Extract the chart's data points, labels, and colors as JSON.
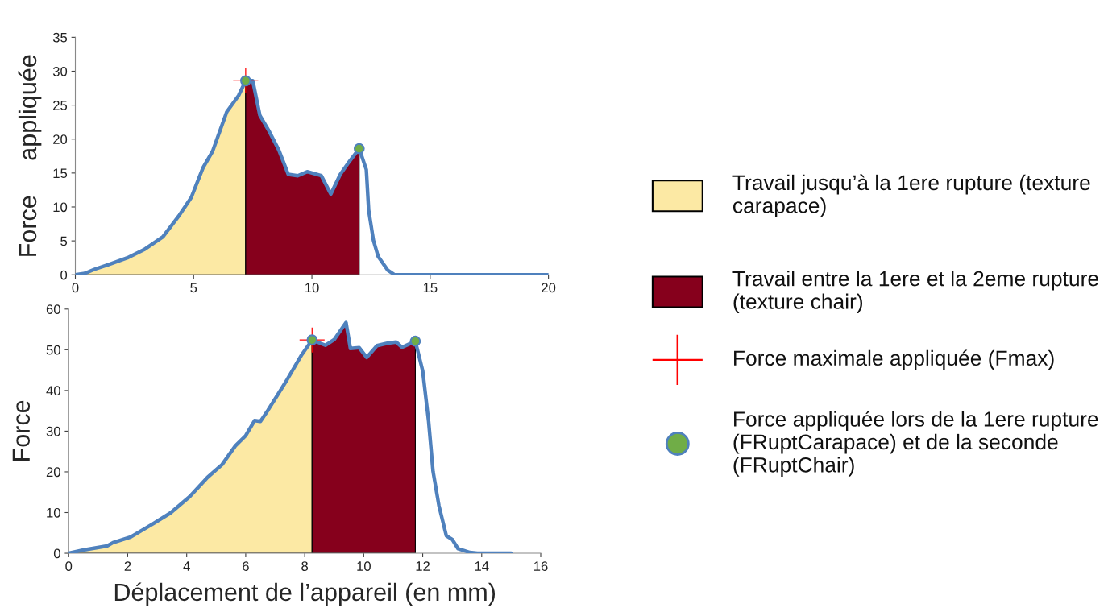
{
  "chart_data": [
    {
      "type": "line",
      "ylabel": "Force     appliquée",
      "xlim": [
        0,
        20
      ],
      "xticks": [
        0,
        5,
        10,
        15,
        20
      ],
      "ylim": [
        0,
        35
      ],
      "yticks": [
        0,
        5,
        10,
        15,
        20,
        25,
        30,
        35
      ],
      "grid": false,
      "legend": "right",
      "series": [
        {
          "color": "#4f81bd",
          "marker": "none",
          "line_style": "solid",
          "x": [
            0,
            0.4,
            0.8,
            1.4,
            2.2,
            2.9,
            3.7,
            4.4,
            4.9,
            5.4,
            5.8,
            6.4,
            6.9,
            7.2,
            7.5,
            7.8,
            8.2,
            8.6,
            9.0,
            9.4,
            9.8,
            10.4,
            10.8,
            11.2,
            11.5,
            12.0,
            12.3,
            12.4,
            12.6,
            12.8,
            13.2,
            13.5,
            16,
            20
          ],
          "values": [
            0,
            0.2,
            0.8,
            1.5,
            2.5,
            3.7,
            5.6,
            8.8,
            11.4,
            15.8,
            18.2,
            24,
            26.4,
            28.6,
            28.6,
            23.5,
            21.1,
            18.4,
            14.8,
            14.6,
            15.2,
            14.6,
            11.9,
            14.8,
            16.3,
            18.6,
            15.5,
            9.5,
            5.1,
            2.7,
            0.7,
            0,
            0,
            0
          ]
        },
        {
          "type": "area",
          "name": "Travail jusqu’à la 1ere rupture (texture carapace)",
          "color": "#fce9a4",
          "x": [
            0,
            0.4,
            0.8,
            1.4,
            2.2,
            2.9,
            3.7,
            4.4,
            4.9,
            5.4,
            5.8,
            6.4,
            6.9,
            7.2
          ],
          "values": [
            0,
            0.2,
            0.8,
            1.5,
            2.5,
            3.7,
            5.6,
            8.8,
            11.4,
            15.8,
            18.2,
            24,
            26.4,
            28.6
          ]
        },
        {
          "type": "area",
          "name": "Travail entre la 1ere et la 2eme rupture (texture chair)",
          "color": "#86001c",
          "x": [
            7.2,
            7.5,
            7.8,
            8.2,
            8.6,
            9.0,
            9.4,
            9.8,
            10.4,
            10.8,
            11.2,
            11.5,
            12.0
          ],
          "values": [
            28.6,
            28.6,
            23.5,
            21.1,
            18.4,
            14.8,
            14.6,
            15.2,
            14.6,
            11.9,
            14.8,
            16.3,
            18.6
          ]
        },
        {
          "type": "scatter",
          "name": "Force maximale appliquée (Fmax)",
          "color": "#ff0000",
          "marker": "cross",
          "x": [
            7.2
          ],
          "values": [
            28.6
          ]
        },
        {
          "type": "scatter",
          "name": "Force appliquée lors de la 1ere rupture (FRuptCarapace) et de la seconde (FRuptChair)",
          "color": "#70ad47",
          "marker": "circle",
          "x": [
            7.2,
            12.0
          ],
          "values": [
            28.6,
            18.6
          ]
        }
      ]
    },
    {
      "type": "line",
      "ylabel": "Force",
      "xlabel": "Déplacement de l’appareil (en mm)",
      "xlim": [
        0,
        16
      ],
      "xticks": [
        0,
        2,
        4,
        6,
        8,
        10,
        12,
        14,
        16
      ],
      "ylim": [
        0,
        60
      ],
      "yticks": [
        0,
        10,
        20,
        30,
        40,
        50,
        60
      ],
      "grid": false,
      "series": [
        {
          "color": "#4f81bd",
          "marker": "none",
          "line_style": "solid",
          "x": [
            0,
            0.5,
            1.3,
            1.5,
            2.1,
            2.85,
            3.45,
            4.1,
            4.7,
            5.2,
            5.65,
            6.0,
            6.3,
            6.5,
            6.75,
            7.4,
            7.9,
            8.25,
            8.7,
            9.0,
            9.4,
            9.55,
            9.85,
            10.1,
            10.45,
            10.8,
            11.1,
            11.3,
            11.75,
            12.0,
            12.2,
            12.35,
            12.55,
            12.8,
            13.0,
            13.2,
            13.6,
            13.85,
            15.0
          ],
          "values": [
            0,
            0.8,
            1.8,
            2.6,
            4.0,
            7.2,
            9.9,
            13.9,
            18.6,
            21.8,
            26.4,
            28.9,
            32.6,
            32.4,
            35.1,
            42.6,
            48.8,
            52.4,
            51.1,
            52.5,
            56.7,
            50.3,
            50.5,
            48.1,
            51.0,
            51.6,
            51.9,
            50.6,
            52.1,
            44.8,
            32.4,
            20.1,
            11.7,
            4.3,
            3.4,
            1.1,
            0.2,
            0,
            0
          ]
        },
        {
          "type": "area",
          "color": "#fce9a4",
          "x": [
            0,
            0.5,
            1.3,
            1.5,
            2.1,
            2.85,
            3.45,
            4.1,
            4.7,
            5.2,
            5.65,
            6.0,
            6.3,
            6.5,
            6.75,
            7.4,
            7.9,
            8.25
          ],
          "values": [
            0,
            0.8,
            1.8,
            2.6,
            4.0,
            7.2,
            9.9,
            13.9,
            18.6,
            21.8,
            26.4,
            28.9,
            32.6,
            32.4,
            35.1,
            42.6,
            48.8,
            52.4
          ]
        },
        {
          "type": "area",
          "color": "#86001c",
          "x": [
            8.25,
            8.7,
            9.0,
            9.4,
            9.55,
            9.85,
            10.1,
            10.45,
            10.8,
            11.1,
            11.3,
            11.75
          ],
          "values": [
            52.4,
            51.1,
            52.5,
            56.7,
            50.3,
            50.5,
            48.1,
            51.0,
            51.6,
            51.9,
            50.6,
            52.1
          ]
        },
        {
          "type": "scatter",
          "color": "#ff0000",
          "marker": "cross",
          "x": [
            8.25
          ],
          "values": [
            52.4
          ]
        },
        {
          "type": "scatter",
          "color": "#70ad47",
          "marker": "circle",
          "x": [
            8.25,
            11.75
          ],
          "values": [
            52.4,
            52.1
          ]
        }
      ]
    }
  ]
}
